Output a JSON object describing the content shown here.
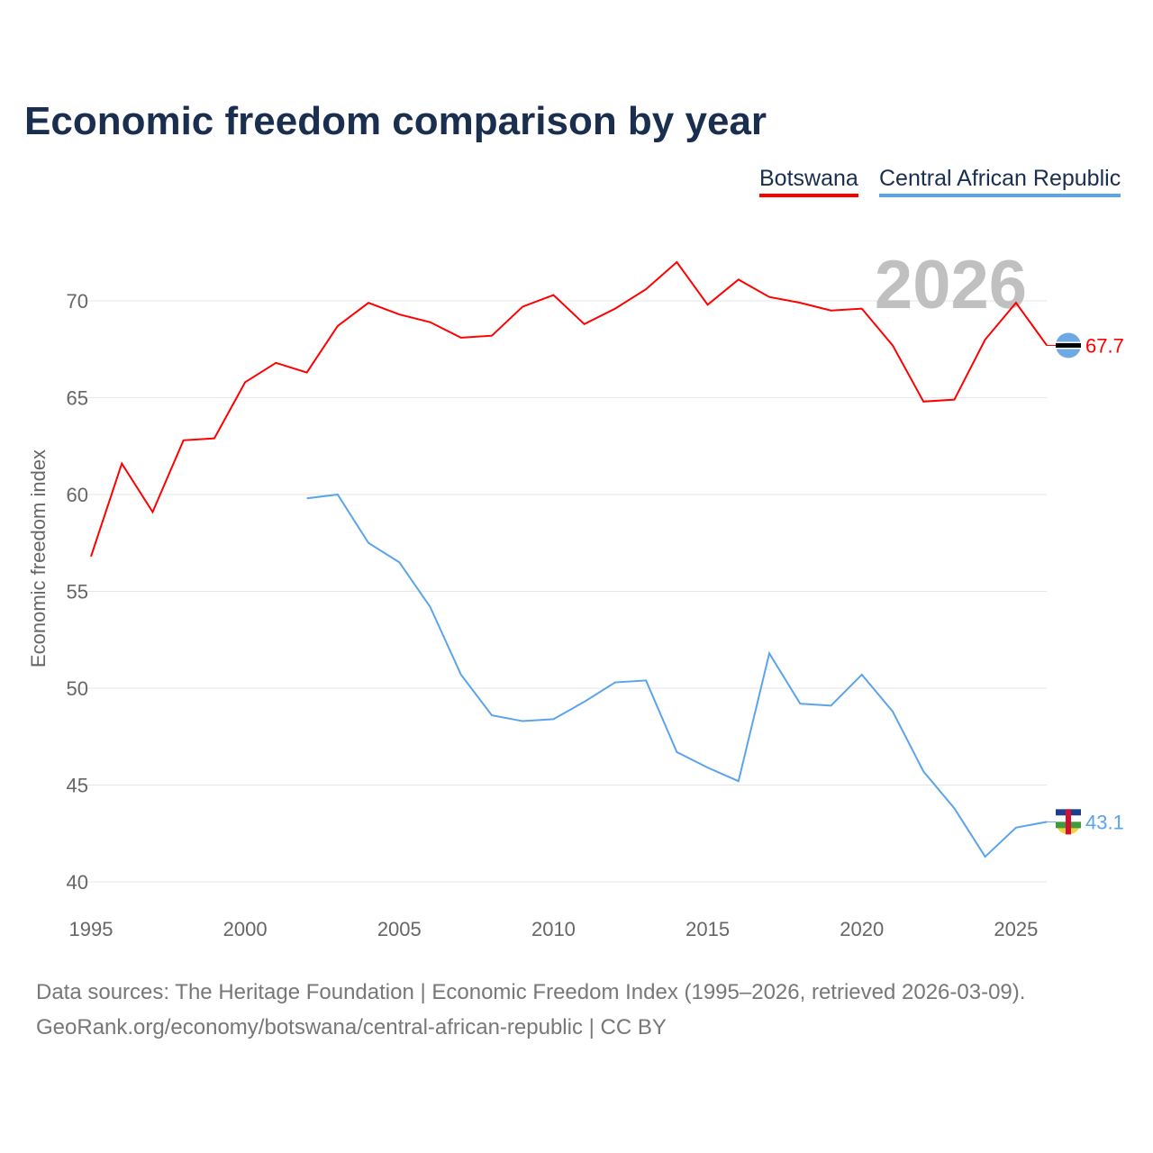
{
  "title": "Economic freedom comparison by year",
  "legend": [
    "Botswana",
    "Central African Republic"
  ],
  "year_watermark": "2026",
  "footer": {
    "line1": "Data sources: The Heritage Foundation | Economic Freedom Index (1995–2026, retrieved 2026-03-09).",
    "line2": "GeoRank.org/economy/botswana/central-african-republic | CC BY"
  },
  "chart_data": {
    "type": "line",
    "title": "Economic freedom comparison by year",
    "xlabel": "",
    "ylabel": "Economic freedom index",
    "xlim": [
      1995,
      2026
    ],
    "ylim": [
      40,
      72.5
    ],
    "x_ticks": [
      1995,
      2000,
      2005,
      2010,
      2015,
      2020,
      2025
    ],
    "y_ticks": [
      40,
      45,
      50,
      55,
      60,
      65,
      70
    ],
    "grid": true,
    "legend_position": "top-right",
    "series": [
      {
        "name": "Botswana",
        "color": "#ff0000",
        "end_label": "67.7",
        "x": [
          1995,
          1996,
          1997,
          1998,
          1999,
          2000,
          2001,
          2002,
          2003,
          2004,
          2005,
          2006,
          2007,
          2008,
          2009,
          2010,
          2011,
          2012,
          2013,
          2014,
          2015,
          2016,
          2017,
          2018,
          2019,
          2020,
          2021,
          2022,
          2023,
          2024,
          2025,
          2026
        ],
        "values": [
          56.8,
          61.6,
          59.1,
          62.8,
          62.9,
          65.8,
          66.8,
          66.3,
          68.7,
          69.9,
          69.3,
          68.9,
          68.1,
          68.2,
          69.7,
          70.3,
          68.8,
          69.6,
          70.6,
          72.0,
          69.8,
          71.1,
          70.2,
          69.9,
          69.5,
          69.6,
          67.7,
          64.8,
          64.9,
          68.0,
          69.9,
          67.7
        ]
      },
      {
        "name": "Central African Republic",
        "color": "#5ba3ea",
        "end_label": "43.1",
        "x": [
          2002,
          2003,
          2004,
          2005,
          2006,
          2007,
          2008,
          2009,
          2010,
          2011,
          2012,
          2013,
          2014,
          2015,
          2016,
          2017,
          2018,
          2019,
          2020,
          2021,
          2022,
          2023,
          2024,
          2025,
          2026
        ],
        "values": [
          59.8,
          60.0,
          57.5,
          56.5,
          54.2,
          50.7,
          48.6,
          48.3,
          48.4,
          49.3,
          50.3,
          50.4,
          46.7,
          45.9,
          45.2,
          51.8,
          49.2,
          49.1,
          50.7,
          48.8,
          45.7,
          43.8,
          41.3,
          42.8,
          43.1
        ]
      }
    ]
  }
}
